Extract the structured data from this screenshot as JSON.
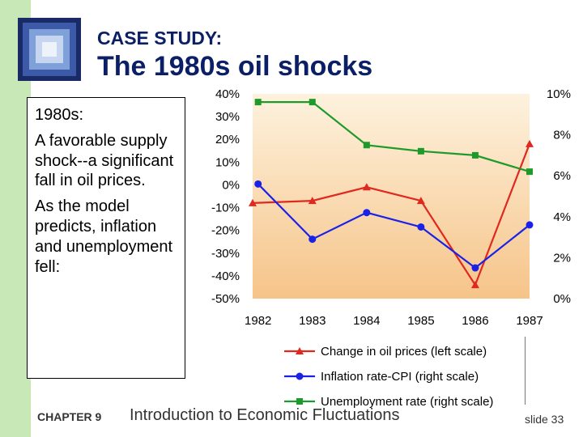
{
  "slide": {
    "kicker": "CASE STUDY:",
    "title": "The 1980s oil shocks",
    "body": [
      "1980s:",
      "A favorable supply shock--a significant fall in oil prices.",
      "As the model predicts, inflation and unemployment fell:"
    ],
    "footer_chapter": "CHAPTER 9",
    "footer_title": "Introduction to Economic Fluctuations",
    "slide_number": "slide 33"
  },
  "colors": {
    "title": "#0b1f66",
    "accent_bar": "#c9e8b8",
    "oil": "#e0281e",
    "inflation": "#1a22e8",
    "unemployment": "#1e9a2a",
    "plot_top": "#fdf2de",
    "plot_bottom": "#f6c489"
  },
  "chart_data": {
    "type": "line",
    "categories": [
      "1982",
      "1983",
      "1984",
      "1985",
      "1986",
      "1987"
    ],
    "x_extent": [
      1981.9,
      1987.0
    ],
    "left_axis": {
      "ylim": [
        -50,
        40
      ],
      "ticks": [
        40,
        30,
        20,
        10,
        0,
        -10,
        -20,
        -30,
        -40,
        -50
      ],
      "tick_labels": [
        "40%",
        "30%",
        "20%",
        "10%",
        "0%",
        "-10%",
        "-20%",
        "-30%",
        "-40%",
        "-50%"
      ]
    },
    "right_axis": {
      "ylim": [
        0,
        10
      ],
      "ticks": [
        10,
        8,
        6,
        4,
        2,
        0
      ],
      "tick_labels": [
        "10%",
        "8%",
        "6%",
        "4%",
        "2%",
        "0%"
      ]
    },
    "series": [
      {
        "name": "Change in oil prices (left scale)",
        "axis": "left",
        "marker": "triangle",
        "color": "#e0281e",
        "x": [
          1981.9,
          1983,
          1984,
          1985,
          1986,
          1987
        ],
        "values": [
          -8,
          -7,
          -1,
          -7,
          -44,
          18
        ]
      },
      {
        "name": "Inflation rate-CPI (right scale)",
        "axis": "right",
        "marker": "circle",
        "color": "#1a22e8",
        "x": [
          1982,
          1983,
          1984,
          1985,
          1986,
          1987
        ],
        "values": [
          5.6,
          2.9,
          4.2,
          3.5,
          1.5,
          3.6
        ]
      },
      {
        "name": "Unemployment rate (right scale)",
        "axis": "right",
        "marker": "square",
        "color": "#1e9a2a",
        "x": [
          1982,
          1983,
          1984,
          1985,
          1986,
          1987
        ],
        "values": [
          9.6,
          9.6,
          7.5,
          7.2,
          7.0,
          6.2
        ]
      }
    ],
    "legend_position": "bottom"
  }
}
